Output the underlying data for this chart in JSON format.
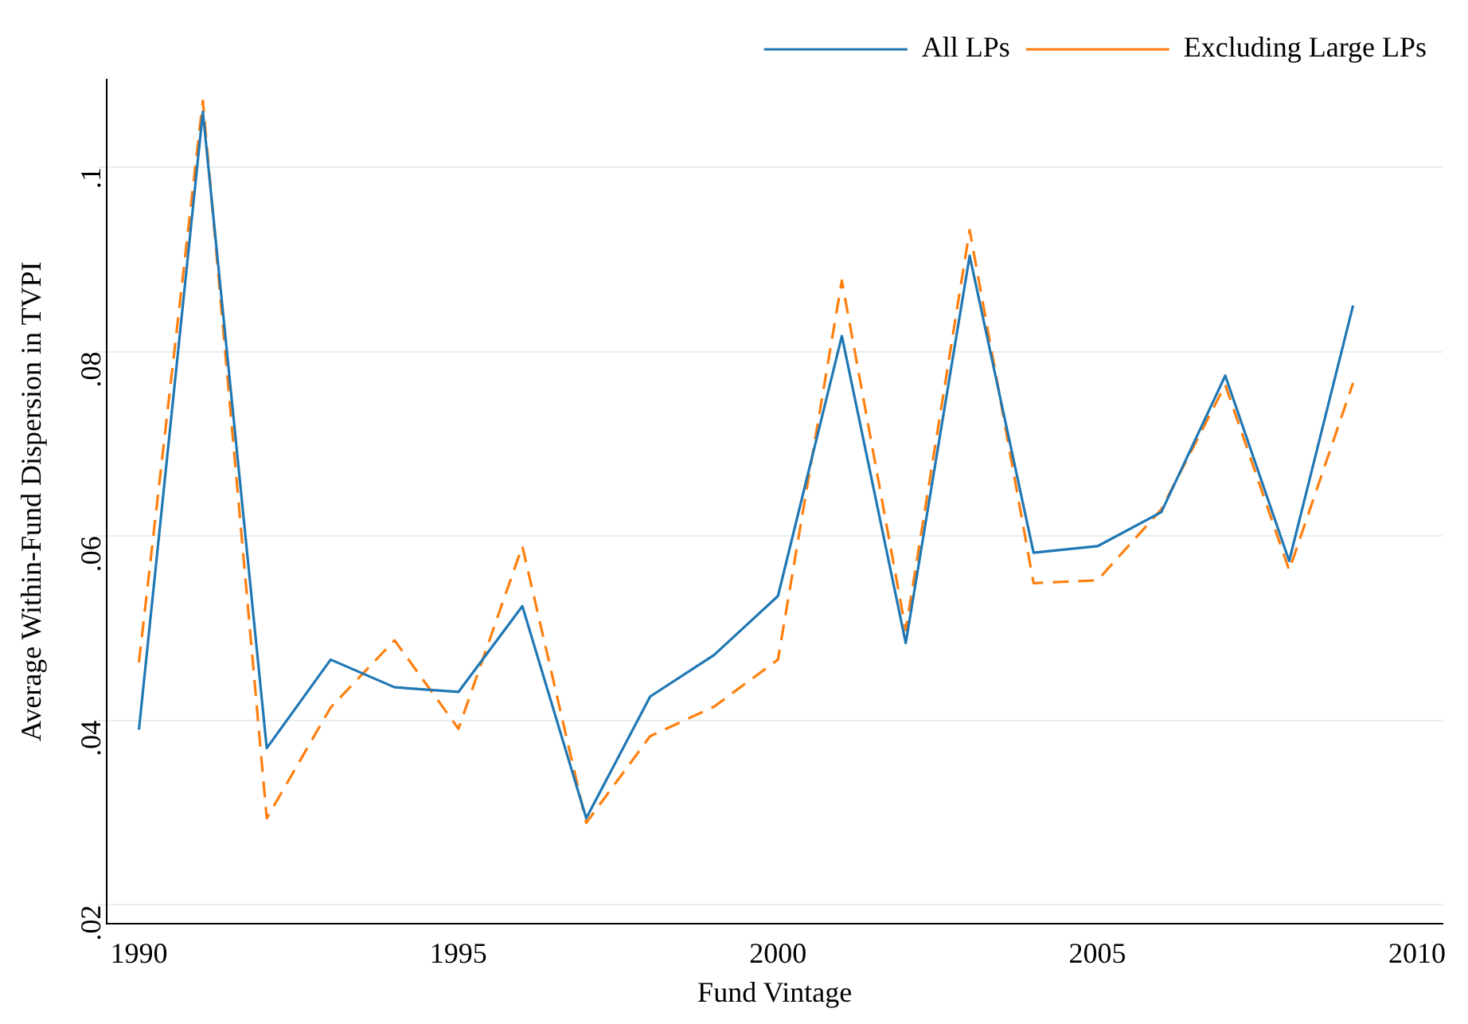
{
  "chart_data": {
    "type": "line",
    "xlabel": "Fund Vintage",
    "ylabel": "Average Within-Fund Dispersion in TVPI",
    "x": [
      1990,
      1991,
      1992,
      1993,
      1994,
      1995,
      1996,
      1997,
      1998,
      1999,
      2000,
      2001,
      2002,
      2003,
      2004,
      2005,
      2006,
      2007,
      2008,
      2009
    ],
    "series": [
      {
        "name": "All LPs",
        "color": "#1f77b4",
        "line_style": "solid",
        "values": [
          0.039,
          0.106,
          0.037,
          0.0466,
          0.0436,
          0.0431,
          0.0524,
          0.0294,
          0.0426,
          0.0471,
          0.0535,
          0.0817,
          0.0484,
          0.0904,
          0.0582,
          0.0589,
          0.0626,
          0.0774,
          0.0573,
          0.085
        ]
      },
      {
        "name": "Excluding Large LPs",
        "color": "#ff7f0e",
        "line_style": "dashed",
        "values": [
          0.0463,
          0.1072,
          0.0294,
          0.0414,
          0.0487,
          0.0391,
          0.0589,
          0.0289,
          0.0383,
          0.0415,
          0.0466,
          0.0877,
          0.0498,
          0.0932,
          0.0549,
          0.0552,
          0.0629,
          0.0764,
          0.0563,
          0.0766
        ]
      }
    ],
    "xlim": [
      1989.5,
      2010.4
    ],
    "xticks": [
      1990,
      1995,
      2000,
      2005,
      2010
    ],
    "ylim": [
      0.018,
      0.1095
    ],
    "yticks": [
      {
        "value": 0.02,
        "label": ".02"
      },
      {
        "value": 0.04,
        "label": ".04"
      },
      {
        "value": 0.06,
        "label": ".06"
      },
      {
        "value": 0.08,
        "label": ".08"
      },
      {
        "value": 0.1,
        "label": ".1"
      }
    ],
    "grid": "y",
    "legend": "top right",
    "marker": "none"
  }
}
